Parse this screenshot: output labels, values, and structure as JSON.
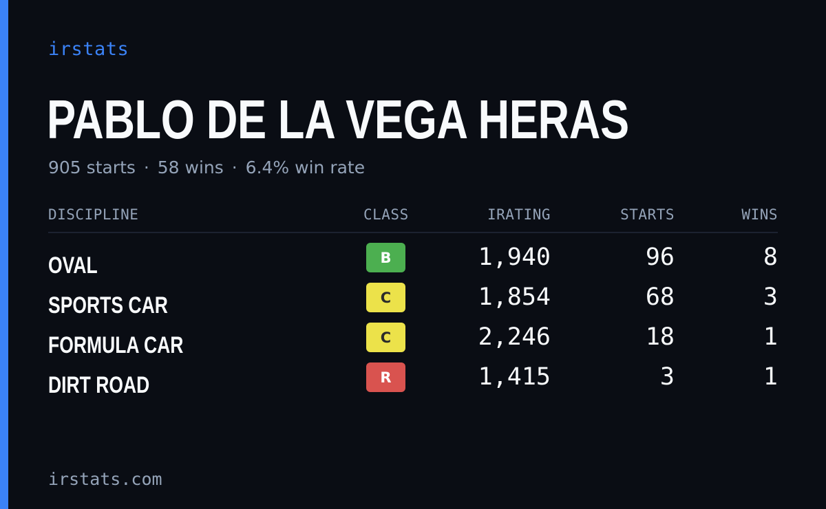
{
  "brand": {
    "name": "irstats",
    "accent_color": "#3b82f6"
  },
  "player": {
    "name": "PABLO DE LA VEGA HERAS",
    "starts_text": "905 starts",
    "wins_text": "58 wins",
    "winrate_text": "6.4% win rate",
    "separator": "·"
  },
  "table": {
    "headers": {
      "discipline": "DISCIPLINE",
      "class": "CLASS",
      "irating": "IRATING",
      "starts": "STARTS",
      "wins": "WINS"
    },
    "rows": [
      {
        "discipline": "OVAL",
        "class": "B",
        "class_bg": "#4caf50",
        "class_fg": "#ffffff",
        "irating": "1,940",
        "starts": "96",
        "wins": "8"
      },
      {
        "discipline": "SPORTS CAR",
        "class": "C",
        "class_bg": "#ece24a",
        "class_fg": "#2b2b2b",
        "irating": "1,854",
        "starts": "68",
        "wins": "3"
      },
      {
        "discipline": "FORMULA CAR",
        "class": "C",
        "class_bg": "#ece24a",
        "class_fg": "#2b2b2b",
        "irating": "2,246",
        "starts": "18",
        "wins": "1"
      },
      {
        "discipline": "DIRT ROAD",
        "class": "R",
        "class_bg": "#d9534f",
        "class_fg": "#ffffff",
        "irating": "1,415",
        "starts": "3",
        "wins": "1"
      }
    ]
  },
  "footer": {
    "url": "irstats.com"
  }
}
